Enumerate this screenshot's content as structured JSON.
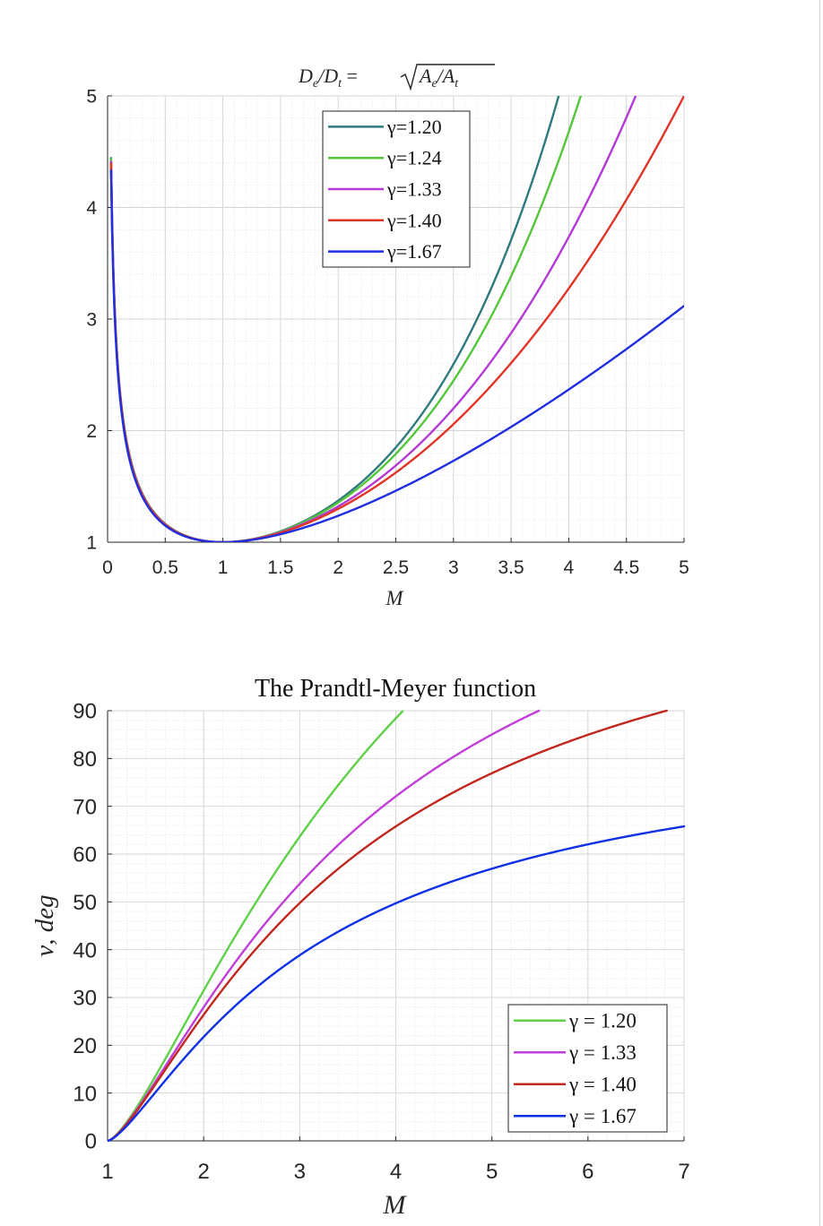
{
  "chart_data": [
    {
      "type": "line",
      "title": "D_e/D_t = √(A_e/A_t)",
      "title_parts": {
        "lhs": "D",
        "lhs_sub": "e",
        "div": "/D",
        "div_sub": "t",
        "eq": " = ",
        "rad_a": "A",
        "rad_a_sub": "e",
        "rad_div": "/A",
        "rad_b_sub": "t"
      },
      "xlabel": "M",
      "ylabel": "",
      "xlim": [
        0,
        5
      ],
      "ylim": [
        1,
        5
      ],
      "xticks": [
        "0",
        "0.5",
        "1",
        "1.5",
        "2",
        "2.5",
        "3",
        "3.5",
        "4",
        "4.5",
        "5"
      ],
      "yticks": [
        "1",
        "2",
        "3",
        "4",
        "5"
      ],
      "grid": true,
      "minor_grid": true,
      "legend_position": "top-center",
      "series": [
        {
          "name": "γ=1.20",
          "gamma": 1.2,
          "color": "#2e7a7e"
        },
        {
          "name": "γ=1.24",
          "gamma": 1.24,
          "color": "#54c63a"
        },
        {
          "name": "γ=1.33",
          "gamma": 1.33,
          "color": "#b43ad6"
        },
        {
          "name": "γ=1.40",
          "gamma": 1.4,
          "color": "#e03428"
        },
        {
          "name": "γ=1.67",
          "gamma": 1.67,
          "color": "#1f2ee0"
        }
      ],
      "sample_values": {
        "x": [
          0.05,
          0.2,
          0.5,
          1,
          1.5,
          2,
          2.5,
          3,
          3.5,
          4,
          4.5,
          5
        ],
        "gamma_1.40": [
          3.4,
          1.72,
          1.16,
          1.0,
          1.06,
          1.3,
          1.64,
          2.06,
          2.6,
          3.27,
          4.06,
          5.0
        ],
        "gamma_1.67": [
          3.16,
          1.66,
          1.15,
          1.0,
          1.05,
          1.22,
          1.45,
          1.72,
          2.02,
          2.36,
          2.73,
          3.13
        ],
        "gamma_1.20": [
          3.62,
          1.78,
          1.18,
          1.0,
          1.07,
          1.34,
          1.78,
          2.45,
          3.41,
          4.78,
          null,
          null
        ]
      }
    },
    {
      "type": "line",
      "title": "The Prandtl-Meyer function",
      "xlabel": "M",
      "ylabel": "ν, deg",
      "xlim": [
        1,
        7
      ],
      "ylim": [
        0,
        90
      ],
      "xticks": [
        "1",
        "2",
        "3",
        "4",
        "5",
        "6",
        "7"
      ],
      "yticks": [
        "0",
        "10",
        "20",
        "30",
        "40",
        "50",
        "60",
        "70",
        "80",
        "90"
      ],
      "grid": true,
      "minor_grid": true,
      "legend_position": "bottom-right",
      "series": [
        {
          "name": "γ = 1.20",
          "gamma": 1.2,
          "color": "#5fd048"
        },
        {
          "name": "γ = 1.33",
          "gamma": 1.33,
          "color": "#c13ed8"
        },
        {
          "name": "γ = 1.40",
          "gamma": 1.4,
          "color": "#c2271f"
        },
        {
          "name": "γ = 1.67",
          "gamma": 1.67,
          "color": "#1030e8"
        }
      ],
      "sample_values": {
        "x": [
          1,
          2,
          3,
          4,
          5,
          6,
          7
        ],
        "gamma_1.20": [
          0,
          33.0,
          64.2,
          88.0,
          null,
          null,
          null
        ],
        "gamma_1.33": [
          0,
          28.0,
          54.2,
          71.9,
          83.7,
          null,
          null
        ],
        "gamma_1.40": [
          0,
          26.4,
          49.8,
          65.8,
          76.9,
          84.9,
          90.7
        ],
        "gamma_1.67": [
          0,
          22.0,
          40.6,
          51.5,
          57.6,
          61.8,
          64.5
        ]
      }
    }
  ]
}
